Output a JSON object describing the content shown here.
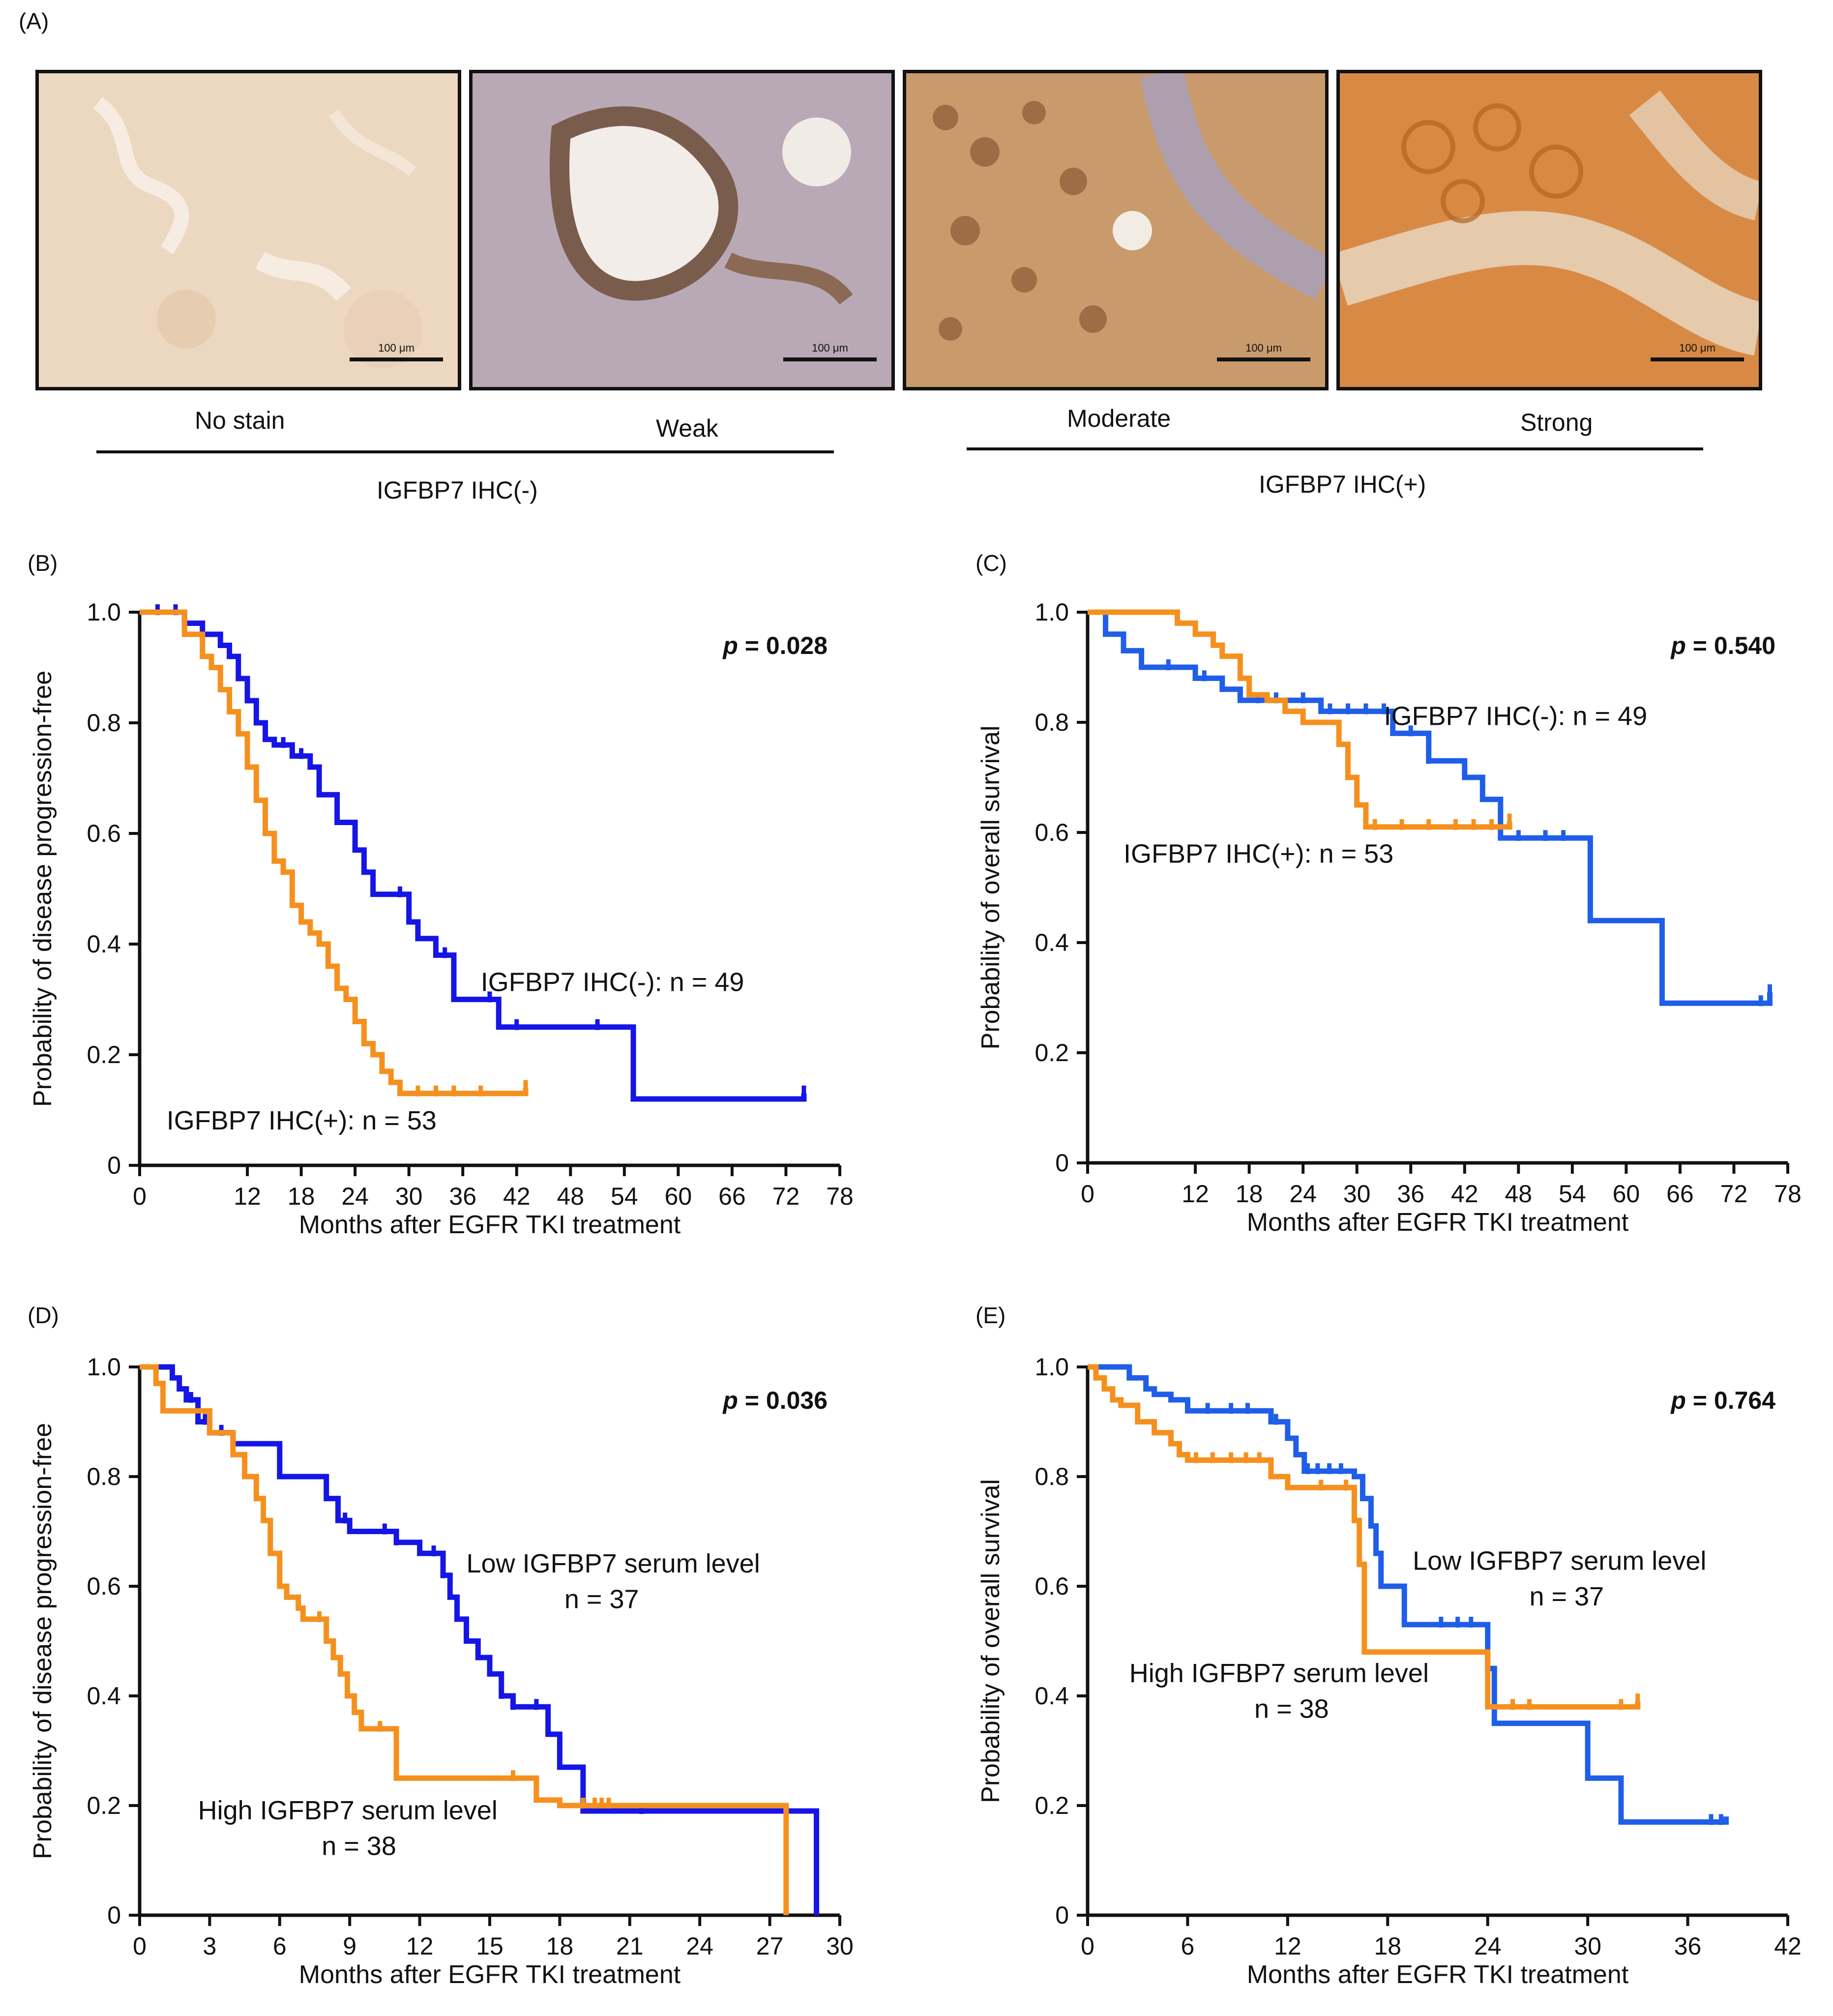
{
  "panel_a": {
    "letter": "(A)",
    "images": [
      {
        "label": "No stain",
        "scale_bar": "100 μm",
        "color": "#e8d2bb"
      },
      {
        "label": "Weak",
        "scale_bar": "100 μm",
        "color": "#b08a70"
      },
      {
        "label": "Moderate",
        "scale_bar": "100 μm",
        "color": "#c9955e"
      },
      {
        "label": "Strong",
        "scale_bar": "100 μm",
        "color": "#d17a2e"
      }
    ],
    "groups": [
      {
        "label": "IGFBP7 IHC(-)"
      },
      {
        "label": "IGFBP7 IHC(+)"
      }
    ]
  },
  "colors": {
    "ihc_neg_low": "#1515e6",
    "ihc_pos_high": "#f5901e",
    "blue_alt": "#1f5ee8"
  },
  "chart_data": [
    {
      "id": "B",
      "letter": "(B)",
      "type": "line",
      "step": true,
      "xlabel": "Months after EGFR TKI treatment",
      "ylabel": "Probability of disease progression-free",
      "xlim": [
        0,
        78
      ],
      "ylim": [
        0,
        1.0
      ],
      "xticks": [
        "0",
        "12",
        "18",
        "24",
        "30",
        "36",
        "42",
        "48",
        "54",
        "60",
        "66",
        "72",
        "78"
      ],
      "xtick_values": [
        0,
        12,
        18,
        24,
        30,
        36,
        42,
        48,
        54,
        60,
        66,
        72,
        78
      ],
      "yticks": [
        "0",
        "0.2",
        "0.4",
        "0.6",
        "0.8",
        "1.0"
      ],
      "ytick_values": [
        0,
        0.2,
        0.4,
        0.6,
        0.8,
        1.0
      ],
      "pvalue_label": "p",
      "pvalue_text": " = 0.028",
      "series": [
        {
          "name": "IGFBP7 IHC(-): n = 49",
          "color": "#1515e6",
          "x": [
            0,
            5,
            7,
            9,
            10,
            11,
            12,
            13,
            14,
            15,
            17,
            19,
            20,
            22,
            24,
            25,
            26,
            28,
            30,
            31,
            33,
            35,
            36,
            40,
            42,
            45,
            48,
            52,
            55,
            60,
            65,
            70,
            74
          ],
          "y": [
            1.0,
            0.98,
            0.96,
            0.94,
            0.92,
            0.88,
            0.84,
            0.8,
            0.77,
            0.76,
            0.74,
            0.72,
            0.67,
            0.62,
            0.57,
            0.53,
            0.49,
            0.49,
            0.44,
            0.41,
            0.38,
            0.3,
            0.3,
            0.25,
            0.25,
            0.25,
            0.25,
            0.25,
            0.12,
            0.12,
            0.12,
            0.12,
            0.13
          ],
          "censor_x": [
            2,
            4,
            16,
            18,
            29,
            34,
            39,
            42,
            51,
            74
          ]
        },
        {
          "name": "IGFBP7 IHC(+): n = 53",
          "color": "#f5901e",
          "x": [
            0,
            5,
            7,
            8,
            9,
            10,
            11,
            12,
            13,
            14,
            15,
            16,
            17,
            18,
            19,
            20,
            21,
            22,
            23,
            24,
            25,
            26,
            27,
            28,
            29,
            34,
            37,
            40,
            43
          ],
          "y": [
            1.0,
            0.96,
            0.92,
            0.9,
            0.86,
            0.82,
            0.78,
            0.72,
            0.66,
            0.6,
            0.55,
            0.53,
            0.47,
            0.44,
            0.42,
            0.4,
            0.36,
            0.32,
            0.3,
            0.26,
            0.22,
            0.2,
            0.17,
            0.15,
            0.13,
            0.13,
            0.13,
            0.13,
            0.14
          ],
          "censor_x": [
            31,
            33,
            35,
            38,
            43
          ]
        }
      ],
      "labels": [
        {
          "text": "IGFBP7 IHC(-): n = 49",
          "x": 38,
          "y": 0.315
        },
        {
          "text": "IGFBP7 IHC(+): n = 53",
          "x": 3,
          "y": 0.065
        }
      ]
    },
    {
      "id": "C",
      "letter": "(C)",
      "type": "line",
      "step": true,
      "xlabel": "Months after EGFR TKI treatment",
      "ylabel": "Probability of overall survival",
      "xlim": [
        0,
        78
      ],
      "ylim": [
        0,
        1.0
      ],
      "xticks": [
        "0",
        "12",
        "18",
        "24",
        "30",
        "36",
        "42",
        "48",
        "54",
        "60",
        "66",
        "72",
        "78"
      ],
      "xtick_values": [
        0,
        12,
        18,
        24,
        30,
        36,
        42,
        48,
        54,
        60,
        66,
        72,
        78
      ],
      "yticks": [
        "0",
        "0.2",
        "0.4",
        "0.6",
        "0.8",
        "1.0"
      ],
      "ytick_values": [
        0,
        0.2,
        0.4,
        0.6,
        0.8,
        1.0
      ],
      "pvalue_label": "p",
      "pvalue_text": " = 0.540",
      "series": [
        {
          "name": "IGFBP7 IHC(-): n = 49",
          "color": "#1f5ee8",
          "x": [
            0,
            2,
            4,
            6,
            8,
            12,
            15,
            17,
            22,
            26,
            30,
            32,
            34,
            38,
            40,
            42,
            44,
            46,
            50,
            54,
            56,
            62,
            64,
            70,
            76
          ],
          "y": [
            1.0,
            0.96,
            0.93,
            0.9,
            0.9,
            0.88,
            0.86,
            0.84,
            0.84,
            0.82,
            0.82,
            0.82,
            0.78,
            0.73,
            0.73,
            0.7,
            0.66,
            0.59,
            0.59,
            0.59,
            0.44,
            0.44,
            0.29,
            0.29,
            0.31
          ],
          "censor_x": [
            9,
            13,
            19,
            21,
            24,
            27,
            29,
            31,
            33,
            36,
            38,
            48,
            51,
            53,
            75,
            76
          ]
        },
        {
          "name": "IGFBP7 IHC(+): n = 53",
          "color": "#f5901e",
          "x": [
            0,
            7,
            10,
            12,
            14,
            15,
            17,
            18,
            20,
            22,
            24,
            26,
            28,
            29,
            30,
            31,
            33,
            36,
            40,
            44,
            47
          ],
          "y": [
            1.0,
            1.0,
            0.98,
            0.96,
            0.94,
            0.92,
            0.88,
            0.85,
            0.84,
            0.82,
            0.8,
            0.8,
            0.76,
            0.7,
            0.65,
            0.61,
            0.61,
            0.61,
            0.61,
            0.61,
            0.62
          ],
          "censor_x": [
            32,
            35,
            38,
            41,
            43,
            45,
            47
          ]
        }
      ],
      "labels": [
        {
          "text": "IGFBP7 IHC(-): n = 49",
          "x": 33,
          "y": 0.795
        },
        {
          "text": "IGFBP7 IHC(+): n = 53",
          "x": 4,
          "y": 0.545
        }
      ]
    },
    {
      "id": "D",
      "letter": "(D)",
      "type": "line",
      "step": true,
      "xlabel": "Months after EGFR TKI treatment",
      "ylabel": "Probability of disease progression-free",
      "xlim": [
        0,
        30
      ],
      "ylim": [
        0,
        1.0
      ],
      "xticks": [
        "0",
        "3",
        "6",
        "9",
        "12",
        "15",
        "18",
        "21",
        "24",
        "27",
        "30"
      ],
      "xtick_values": [
        0,
        3,
        6,
        9,
        12,
        15,
        18,
        21,
        24,
        27,
        30
      ],
      "yticks": [
        "0",
        "0.2",
        "0.4",
        "0.6",
        "0.8",
        "1.0"
      ],
      "ytick_values": [
        0,
        0.2,
        0.4,
        0.6,
        0.8,
        1.0
      ],
      "pvalue_label": "p",
      "pvalue_text": " = 0.036",
      "series": [
        {
          "name": "Low IGFBP7 serum level n = 37",
          "color": "#1515e6",
          "x": [
            0,
            1.4,
            1.7,
            2,
            2.5,
            3,
            4,
            5,
            6,
            7,
            8,
            8.5,
            9,
            10,
            11,
            12,
            13,
            13.3,
            13.6,
            14,
            14.5,
            15,
            15.5,
            16,
            17,
            17.5,
            18,
            19,
            20,
            22,
            25,
            28,
            29
          ],
          "y": [
            1.0,
            0.98,
            0.96,
            0.94,
            0.9,
            0.88,
            0.86,
            0.86,
            0.8,
            0.8,
            0.76,
            0.72,
            0.7,
            0.7,
            0.68,
            0.66,
            0.62,
            0.58,
            0.54,
            0.5,
            0.47,
            0.44,
            0.4,
            0.38,
            0.38,
            0.33,
            0.27,
            0.19,
            0.19,
            0.19,
            0.19,
            0.19,
            0
          ],
          "censor_x": [
            2.2,
            2.8,
            3.5,
            8.8,
            10.5,
            11,
            12.6,
            13,
            15.5,
            16,
            17,
            21.5
          ]
        },
        {
          "name": "High IGFBP7 serum level n = 38",
          "color": "#f5901e",
          "x": [
            0,
            0.7,
            1,
            1.5,
            3,
            4,
            4.5,
            5,
            5.3,
            5.6,
            6,
            6.3,
            6.8,
            7,
            8,
            8.3,
            8.6,
            8.9,
            9.2,
            9.5,
            10,
            11,
            12,
            14,
            16,
            17,
            18,
            20,
            25,
            27.7
          ],
          "y": [
            1.0,
            0.97,
            0.92,
            0.92,
            0.88,
            0.84,
            0.8,
            0.76,
            0.72,
            0.66,
            0.6,
            0.58,
            0.56,
            0.54,
            0.5,
            0.47,
            0.44,
            0.4,
            0.37,
            0.34,
            0.34,
            0.25,
            0.25,
            0.25,
            0.25,
            0.21,
            0.2,
            0.2,
            0.2,
            0
          ],
          "censor_x": [
            7.7,
            10.3,
            16,
            19,
            19.5,
            19.8,
            20.1
          ]
        }
      ],
      "labels": [
        {
          "text": "Low IGFBP7 serum level",
          "x": 14,
          "y": 0.625
        },
        {
          "text": "n = 37",
          "x": 18.2,
          "y": 0.56
        },
        {
          "text": "High IGFBP7 serum level",
          "x": 2.5,
          "y": 0.175
        },
        {
          "text": "n = 38",
          "x": 7.8,
          "y": 0.11
        }
      ]
    },
    {
      "id": "E",
      "letter": "(E)",
      "type": "line",
      "step": true,
      "xlabel": "Months after EGFR TKI treatment",
      "ylabel": "Probability of overall survival",
      "xlim": [
        0,
        42
      ],
      "ylim": [
        0,
        1.0
      ],
      "xticks": [
        "0",
        "6",
        "12",
        "18",
        "24",
        "30",
        "36",
        "42"
      ],
      "xtick_values": [
        0,
        6,
        12,
        18,
        24,
        30,
        36,
        42
      ],
      "yticks": [
        "0",
        "0.2",
        "0.4",
        "0.6",
        "0.8",
        "1.0"
      ],
      "ytick_values": [
        0,
        0.2,
        0.4,
        0.6,
        0.8,
        1.0
      ],
      "pvalue_label": "p",
      "pvalue_text": " = 0.764",
      "series": [
        {
          "name": "Low IGFBP7 serum level n = 37",
          "color": "#1f5ee8",
          "x": [
            0,
            2.5,
            3.5,
            4,
            5,
            6,
            7,
            8,
            9,
            10,
            11,
            12,
            12.5,
            13,
            14,
            15,
            16,
            16.5,
            17,
            17.3,
            17.6,
            18,
            19,
            22,
            24,
            24.4,
            28,
            30,
            32,
            36,
            38.3
          ],
          "y": [
            1.0,
            0.98,
            0.96,
            0.95,
            0.94,
            0.92,
            0.92,
            0.92,
            0.92,
            0.92,
            0.9,
            0.87,
            0.84,
            0.81,
            0.81,
            0.81,
            0.8,
            0.76,
            0.71,
            0.66,
            0.6,
            0.6,
            0.53,
            0.53,
            0.45,
            0.35,
            0.35,
            0.25,
            0.17,
            0.17,
            0.18
          ],
          "censor_x": [
            7.2,
            8.6,
            9.6,
            11.3,
            13.2,
            13.8,
            14.5,
            15.2,
            21.2,
            22.2,
            23,
            37.4,
            38
          ]
        },
        {
          "name": "High IGFBP7 serum level n = 38",
          "color": "#f5901e",
          "x": [
            0,
            0.5,
            1,
            1.5,
            2,
            3,
            4,
            5,
            5.5,
            6,
            7,
            8,
            9,
            10,
            11,
            12,
            14,
            15,
            16,
            16.3,
            16.6,
            20,
            23,
            24,
            25,
            28,
            30,
            33
          ],
          "y": [
            1.0,
            0.98,
            0.96,
            0.94,
            0.93,
            0.9,
            0.88,
            0.86,
            0.84,
            0.83,
            0.83,
            0.83,
            0.83,
            0.83,
            0.8,
            0.78,
            0.78,
            0.78,
            0.72,
            0.64,
            0.48,
            0.48,
            0.48,
            0.38,
            0.38,
            0.38,
            0.38,
            0.39
          ],
          "censor_x": [
            6.5,
            7.5,
            8.6,
            9.5,
            10.3,
            14,
            15.5,
            25.5,
            26.5,
            32,
            33
          ]
        }
      ],
      "labels": [
        {
          "text": "Low IGFBP7 serum level",
          "x": 19.5,
          "y": 0.63
        },
        {
          "text": "n = 37",
          "x": 26.5,
          "y": 0.565
        },
        {
          "text": "High IGFBP7 serum level",
          "x": 2.5,
          "y": 0.425
        },
        {
          "text": "n = 38",
          "x": 10,
          "y": 0.36
        }
      ]
    }
  ]
}
